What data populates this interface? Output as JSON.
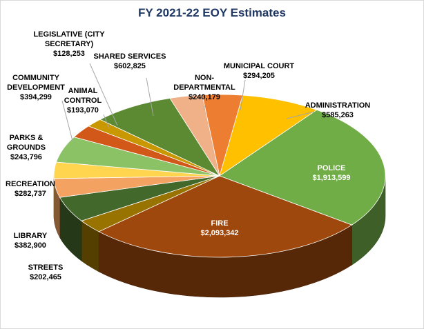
{
  "chart_data": {
    "type": "pie",
    "title": "FY 2021-22 EOY Estimates",
    "slices": [
      {
        "name": "MUNICIPAL COURT",
        "label_lines": [
          "MUNICIPAL  COURT"
        ],
        "value_label": "$294,205",
        "value": 294205,
        "color": "#ed7d31",
        "label_inside": false
      },
      {
        "name": "ADMINISTRATION",
        "label_lines": [
          "ADMINISTRATION"
        ],
        "value_label": "$585,263",
        "value": 585263,
        "color": "#ffc000",
        "label_inside": false
      },
      {
        "name": "POLICE",
        "label_lines": [
          "POLICE"
        ],
        "value_label": "$1,913,599",
        "value": 1913599,
        "color": "#70ad47",
        "label_inside": true
      },
      {
        "name": "FIRE",
        "label_lines": [
          "FIRE"
        ],
        "value_label": "$2,093,342",
        "value": 2093342,
        "color": "#9e480e",
        "label_inside": true
      },
      {
        "name": "STREETS",
        "label_lines": [
          "STREETS"
        ],
        "value_label": "$202,465",
        "value": 202465,
        "color": "#997300",
        "label_inside": false
      },
      {
        "name": "LIBRARY",
        "label_lines": [
          "LIBRARY"
        ],
        "value_label": "$382,900",
        "value": 382900,
        "color": "#43682b",
        "label_inside": false
      },
      {
        "name": "RECREATION",
        "label_lines": [
          "RECREATION"
        ],
        "value_label": "$282,737",
        "value": 282737,
        "color": "#f4a261",
        "label_inside": false
      },
      {
        "name": "PARKS & GROUNDS",
        "label_lines": [
          "PARKS &",
          "GROUNDS"
        ],
        "value_label": "$243,796",
        "value": 243796,
        "color": "#ffd54f",
        "label_inside": false
      },
      {
        "name": "COMMUNITY DEVELOPMENT",
        "label_lines": [
          "COMMUNITY",
          "DEVELOPMENT"
        ],
        "value_label": "$394,299",
        "value": 394299,
        "color": "#8cc266",
        "label_inside": false
      },
      {
        "name": "ANIMAL CONTROL",
        "label_lines": [
          "ANIMAL",
          "CONTROL"
        ],
        "value_label": "$193,070",
        "value": 193070,
        "color": "#d2581a",
        "label_inside": false
      },
      {
        "name": "LEGISLATIVE (CITY SECRETARY)",
        "label_lines": [
          "LEGISLATIVE  (CITY",
          "SECRETARY)"
        ],
        "value_label": "$128,253",
        "value": 128253,
        "color": "#c99700",
        "label_inside": false
      },
      {
        "name": "SHARED SERVICES",
        "label_lines": [
          "SHARED SERVICES"
        ],
        "value_label": "$602,825",
        "value": 602825,
        "color": "#5b8a33",
        "label_inside": false
      },
      {
        "name": "NON-DEPARTMENTAL",
        "label_lines": [
          "NON-",
          "DEPARTMENTAL"
        ],
        "value_label": "$240,179",
        "value": 240179,
        "color": "#f0b088",
        "label_inside": false
      }
    ],
    "legend": "none"
  }
}
